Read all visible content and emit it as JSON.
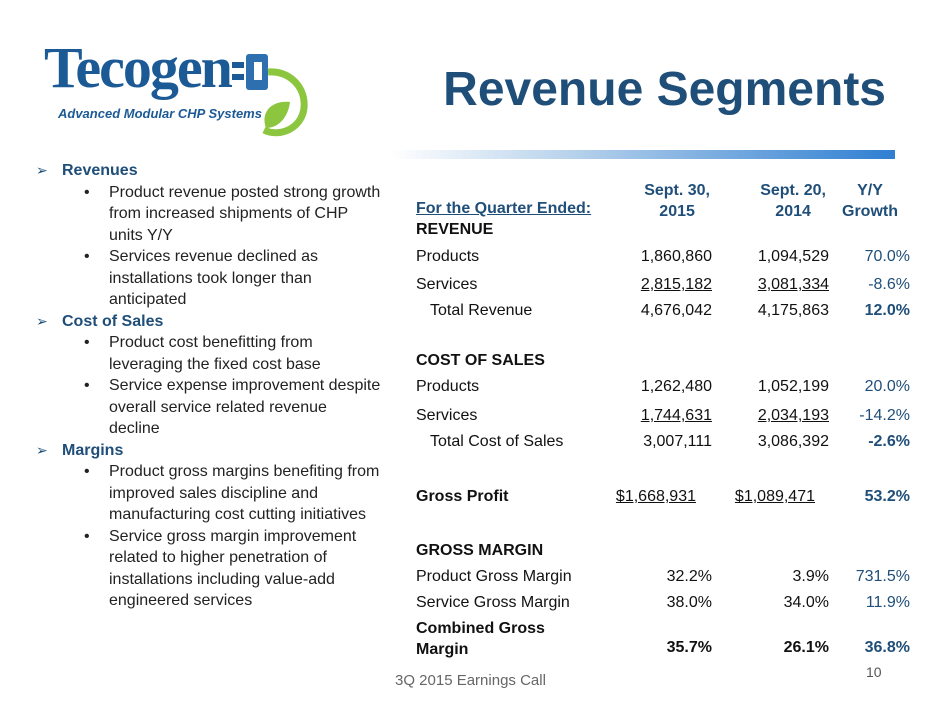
{
  "logo": {
    "word": "Tecogen",
    "tagline": "Advanced Modular CHP Systems"
  },
  "title": "Revenue Segments",
  "bullets": [
    {
      "head": "Revenues",
      "items": [
        "Product revenue posted strong growth from increased shipments of CHP units Y/Y",
        "Services revenue declined as installations took longer than anticipated"
      ]
    },
    {
      "head": "Cost of Sales",
      "items": [
        "Product cost benefitting from leveraging the fixed cost base",
        "Service expense improvement despite overall service related revenue decline"
      ]
    },
    {
      "head": "Margins",
      "items": [
        "Product gross margins benefiting from improved sales discipline and manufacturing cost cutting initiatives",
        "Service gross margin improvement related to higher penetration of installations including value-add engineered services"
      ]
    }
  ],
  "table": {
    "caption": "For the Quarter Ended:",
    "col1": [
      "Sept. 30,",
      "2015"
    ],
    "col2": [
      "Sept. 20,",
      "2014"
    ],
    "col3": [
      "Y/Y",
      "Growth"
    ],
    "revenue": {
      "heading": "REVENUE",
      "products": [
        "Products",
        "1,860,860",
        "1,094,529",
        "70.0%"
      ],
      "services": [
        "Services",
        "2,815,182",
        "3,081,334",
        "-8.6%"
      ],
      "total": [
        "Total Revenue",
        "4,676,042",
        "4,175,863",
        "12.0%"
      ]
    },
    "cost": {
      "heading": "COST OF SALES",
      "products": [
        "Products",
        "1,262,480",
        "1,052,199",
        "20.0%"
      ],
      "services": [
        "Services",
        "1,744,631",
        "2,034,193",
        "-14.2%"
      ],
      "total": [
        "Total Cost of Sales",
        "3,007,111",
        "3,086,392",
        "-2.6%"
      ]
    },
    "gross_profit": [
      "Gross Profit",
      "$1,668,931",
      "$1,089,471",
      "53.2%"
    ],
    "margin": {
      "heading": "GROSS MARGIN",
      "product": [
        "Product Gross Margin",
        "32.2%",
        "3.9%",
        "731.5%"
      ],
      "service": [
        "Service Gross Margin",
        "38.0%",
        "34.0%",
        "11.9%"
      ],
      "combined": [
        "Combined Gross",
        "Margin",
        "35.7%",
        "26.1%",
        "36.8%"
      ]
    }
  },
  "footer": "3Q 2015 Earnings Call",
  "page_number": "10"
}
